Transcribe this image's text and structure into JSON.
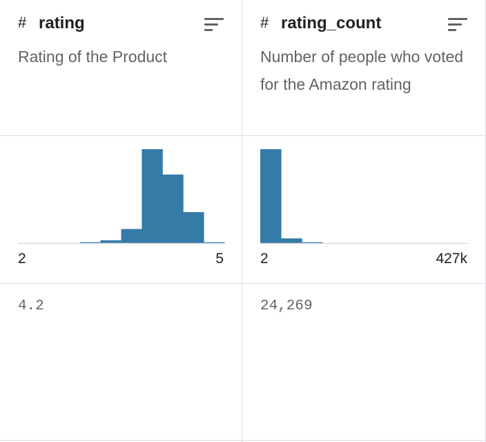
{
  "columns": [
    {
      "type_symbol": "#",
      "name": "rating",
      "description": "Rating of the Product",
      "value": "4.2",
      "chart_data": {
        "type": "bar",
        "categories": [
          "2.0-2.3",
          "2.3-2.6",
          "2.6-2.9",
          "2.9-3.2",
          "3.2-3.5",
          "3.5-3.8",
          "3.8-4.1",
          "4.1-4.4",
          "4.4-4.7",
          "4.7-5.0"
        ],
        "values": [
          0,
          0,
          0,
          1,
          3,
          15,
          100,
          73,
          33,
          1
        ],
        "xlabel": "",
        "ylabel": "",
        "x_range_labels": [
          "2",
          "5"
        ],
        "color": "#357ba8"
      }
    },
    {
      "type_symbol": "#",
      "name": "rating_count",
      "description": "Number of people who voted for the Amazon rating",
      "value": "24,269",
      "chart_data": {
        "type": "bar",
        "categories": [
          "b1",
          "b2",
          "b3",
          "b4",
          "b5",
          "b6",
          "b7",
          "b8",
          "b9",
          "b10"
        ],
        "values": [
          100,
          5,
          1,
          0,
          0,
          0,
          0,
          0,
          0,
          0
        ],
        "xlabel": "",
        "ylabel": "",
        "x_range_labels": [
          "2",
          "427k"
        ],
        "color": "#357ba8"
      }
    }
  ],
  "colors": {
    "bar": "#357ba8",
    "baseline": "#dadce0"
  },
  "icons": {
    "type": "hash-icon",
    "sort": "sort-lines-icon"
  }
}
